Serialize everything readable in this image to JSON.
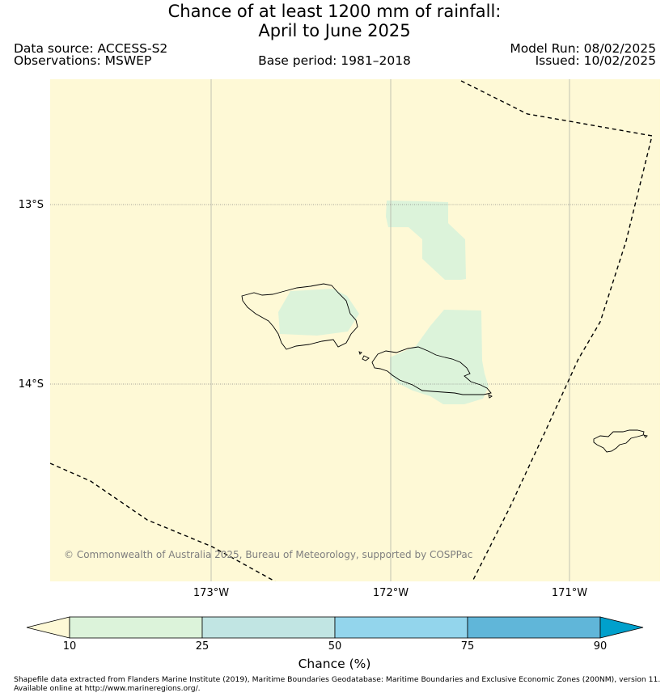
{
  "title": {
    "line1": "Chance of at least 1200 mm of rainfall:",
    "line2": "April to June 2025"
  },
  "info": {
    "data_source": "Data source: ACCESS-S2",
    "observations": "Observations: MSWEP",
    "base_period": "Base period: 1981–2018",
    "model_run": "Model Run: 08/02/2025",
    "issued": "Issued: 10/02/2025"
  },
  "map": {
    "background_color": "#fef9d6",
    "lat_labels": [
      "13°S",
      "14°S"
    ],
    "lon_labels": [
      "173°W",
      "172°W",
      "171°W"
    ],
    "copyright": "© Commonwealth of Australia 2025, Bureau of Meteorology, supported by COSPPac",
    "region_color": "#dcf3da",
    "boundary_style": "dashed"
  },
  "colorbar": {
    "label": "Chance (%)",
    "ticks": [
      "10",
      "25",
      "50",
      "75",
      "90"
    ],
    "colors": [
      "#fef9d6",
      "#dcf3da",
      "#c1e5e3",
      "#93d5ec",
      "#60b6d9",
      "#00a0cc"
    ]
  },
  "footer": {
    "line1": "Shapefile data extracted from Flanders Marine Institute (2019), Maritime Boundaries Geodatabase: Maritime Boundaries and Exclusive Economic Zones (200NM), version 11.",
    "line2": "Available online at http://www.marineregions.org/."
  }
}
